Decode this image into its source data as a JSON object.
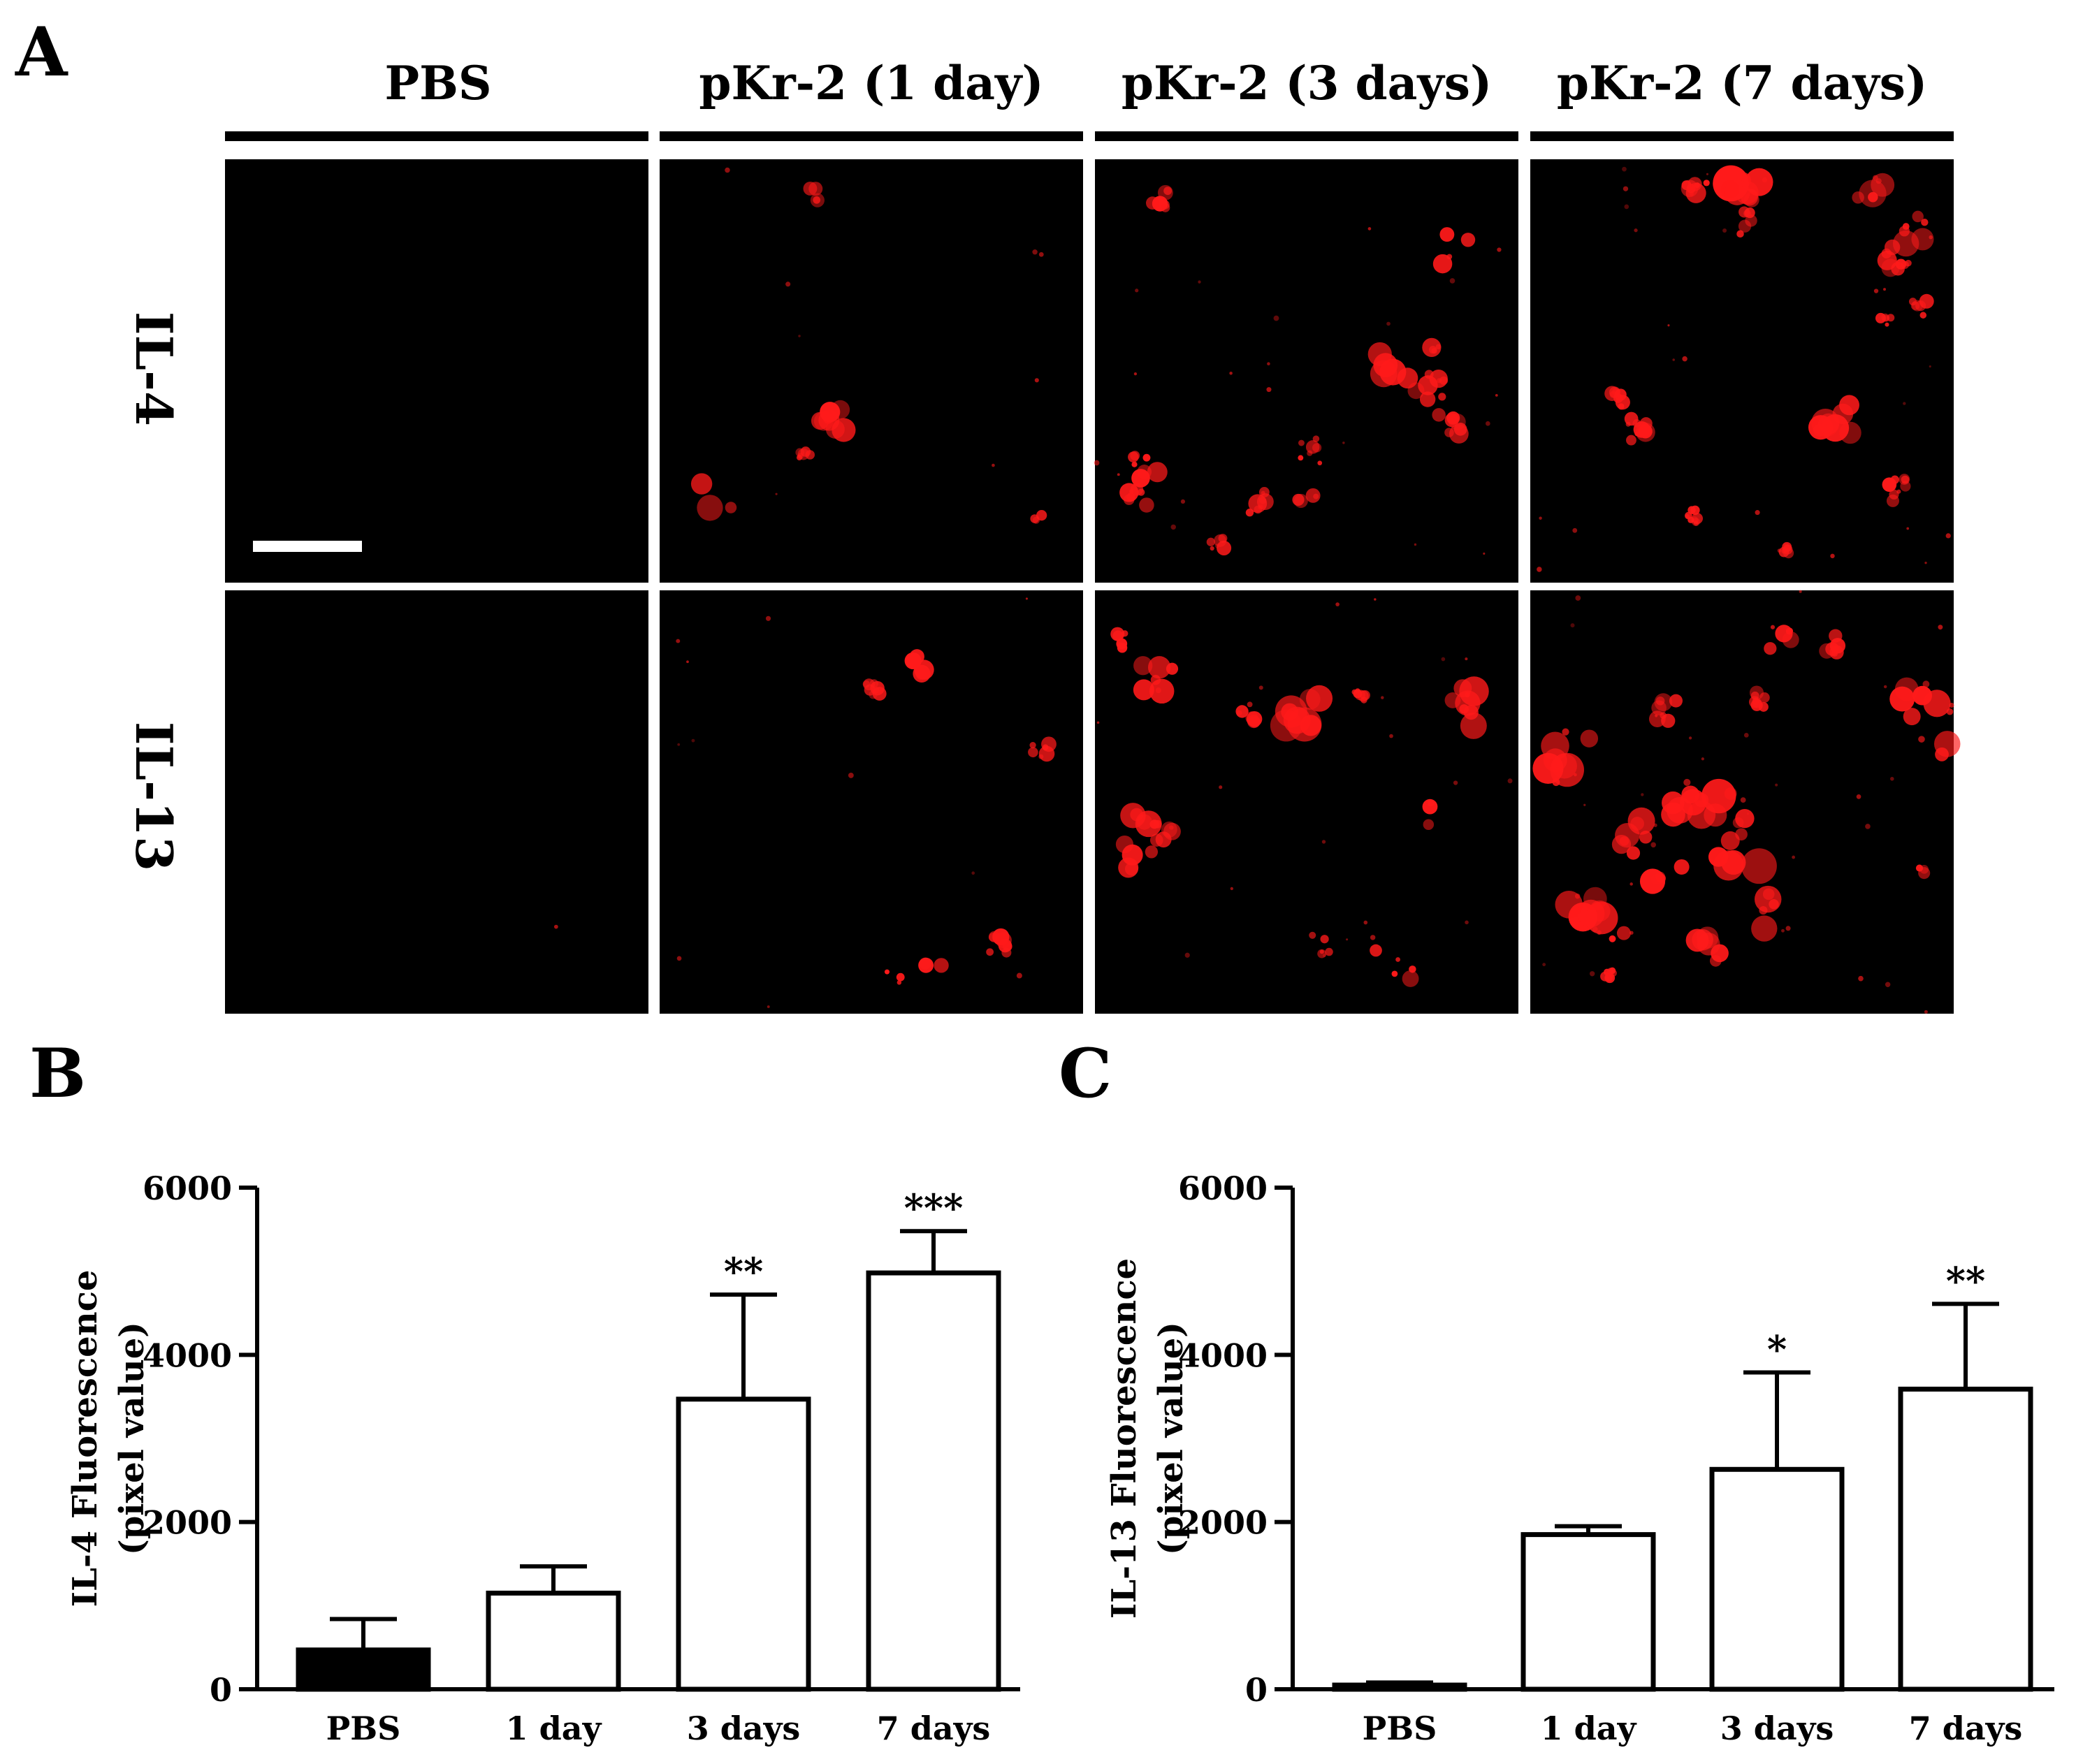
{
  "figure": {
    "panel_labels": {
      "a": "A",
      "b": "B",
      "c": "C"
    },
    "column_headers": [
      "PBS",
      "pKr-2 (1 day)",
      "pKr-2 (3 days)",
      "pKr-2 (7 days)"
    ],
    "row_labels": [
      "IL-4",
      "IL-13"
    ]
  },
  "micrographs": {
    "background": "#000000",
    "stain_color": "#ff1a1a",
    "scale_bar_color": "#ffffff",
    "signal_density": [
      [
        0,
        0.25,
        0.7,
        0.85
      ],
      [
        0.02,
        0.35,
        0.65,
        1.0
      ]
    ]
  },
  "chart_data": [
    {
      "type": "bar",
      "panel": "B",
      "categories": [
        "PBS",
        "1 day",
        "3 days",
        "7 days"
      ],
      "values": [
        470,
        1150,
        3470,
        4980
      ],
      "errors": [
        370,
        320,
        1250,
        500
      ],
      "significance": [
        "",
        "",
        "**",
        "***"
      ],
      "bar_fill": [
        "#000000",
        "#ffffff",
        "#ffffff",
        "#ffffff"
      ],
      "ylabel_line1": "IL-4 Fluorescence",
      "ylabel_line2": "(pixel value)",
      "ylim": [
        0,
        6000
      ],
      "yticks": [
        0,
        2000,
        4000,
        6000
      ]
    },
    {
      "type": "bar",
      "panel": "C",
      "categories": [
        "PBS",
        "1 day",
        "3 days",
        "7 days"
      ],
      "values": [
        50,
        1850,
        2630,
        3590
      ],
      "errors": [
        30,
        100,
        1160,
        1020
      ],
      "significance": [
        "",
        "",
        "*",
        "**"
      ],
      "bar_fill": [
        "#000000",
        "#ffffff",
        "#ffffff",
        "#ffffff"
      ],
      "ylabel_line1": "IL-13 Fluorescence",
      "ylabel_line2": "(pixel value)",
      "ylim": [
        0,
        6000
      ],
      "yticks": [
        0,
        2000,
        4000,
        6000
      ]
    }
  ]
}
